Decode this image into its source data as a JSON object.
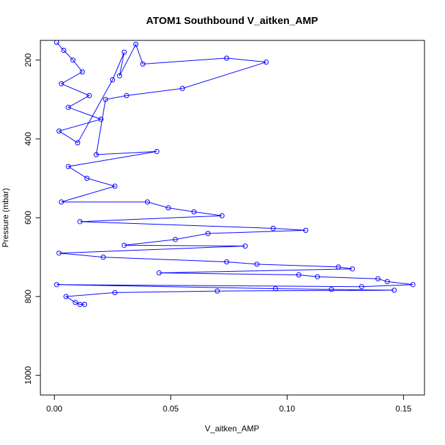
{
  "chart_data": {
    "type": "scatter",
    "title": "ATOM1 Southbound V_aitken_AMP",
    "xlabel": "V_aitken_AMP",
    "ylabel": "Pressure (mbar)",
    "xlim": [
      -0.006,
      0.159
    ],
    "ylim": [
      1050,
      150
    ],
    "y_reversed": true,
    "x_ticks": [
      0.0,
      0.05,
      0.1,
      0.15
    ],
    "x_tick_labels": [
      "0.00",
      "0.05",
      "0.10",
      "0.15"
    ],
    "y_ticks": [
      200,
      400,
      600,
      800,
      1000
    ],
    "y_tick_labels": [
      "200",
      "400",
      "600",
      "800",
      "1000"
    ],
    "grid": false,
    "legend": "none",
    "marker": "open-circle",
    "line_connected": true,
    "color": "#0000ff",
    "series": [
      {
        "points": [
          [
            0.001,
            155
          ],
          [
            0.004,
            175
          ],
          [
            0.008,
            200
          ],
          [
            0.012,
            230
          ],
          [
            0.003,
            260
          ],
          [
            0.015,
            290
          ],
          [
            0.006,
            320
          ],
          [
            0.02,
            350
          ],
          [
            0.002,
            380
          ],
          [
            0.01,
            410
          ],
          [
            0.025,
            250
          ],
          [
            0.03,
            180
          ],
          [
            0.028,
            240
          ],
          [
            0.035,
            160
          ],
          [
            0.038,
            210
          ],
          [
            0.074,
            195
          ],
          [
            0.091,
            205
          ],
          [
            0.055,
            272
          ],
          [
            0.031,
            290
          ],
          [
            0.022,
            300
          ],
          [
            0.018,
            440
          ],
          [
            0.044,
            432
          ],
          [
            0.006,
            470
          ],
          [
            0.014,
            500
          ],
          [
            0.026,
            520
          ],
          [
            0.003,
            560
          ],
          [
            0.04,
            560
          ],
          [
            0.049,
            575
          ],
          [
            0.06,
            585
          ],
          [
            0.072,
            595
          ],
          [
            0.011,
            610
          ],
          [
            0.094,
            627
          ],
          [
            0.108,
            632
          ],
          [
            0.066,
            640
          ],
          [
            0.052,
            655
          ],
          [
            0.03,
            670
          ],
          [
            0.082,
            672
          ],
          [
            0.002,
            690
          ],
          [
            0.021,
            700
          ],
          [
            0.074,
            712
          ],
          [
            0.087,
            718
          ],
          [
            0.122,
            725
          ],
          [
            0.128,
            730
          ],
          [
            0.045,
            740
          ],
          [
            0.105,
            745
          ],
          [
            0.113,
            750
          ],
          [
            0.139,
            755
          ],
          [
            0.143,
            762
          ],
          [
            0.154,
            770
          ],
          [
            0.132,
            775
          ],
          [
            0.001,
            770
          ],
          [
            0.095,
            780
          ],
          [
            0.119,
            782
          ],
          [
            0.146,
            784
          ],
          [
            0.07,
            786
          ],
          [
            0.026,
            790
          ],
          [
            0.005,
            800
          ],
          [
            0.009,
            815
          ],
          [
            0.011,
            820
          ],
          [
            0.013,
            820
          ]
        ]
      }
    ]
  }
}
